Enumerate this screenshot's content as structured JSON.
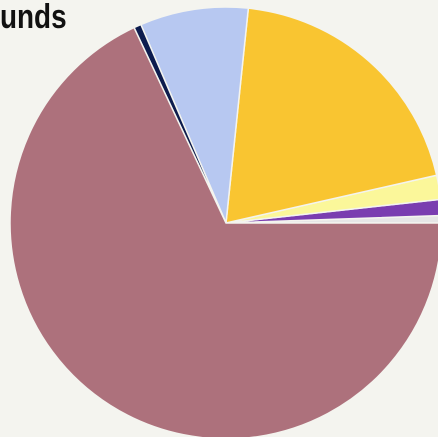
{
  "chart_data": {
    "type": "pie",
    "title": "unds",
    "start_angle_deg": 0,
    "direction": "counterclockwise",
    "slices": [
      {
        "value": 0.55,
        "color": "#e6e6e6"
      },
      {
        "value": 1.2,
        "color": "#7a3db0"
      },
      {
        "value": 1.8,
        "color": "#fbf79a"
      },
      {
        "value": 19.8,
        "color": "#f9c531"
      },
      {
        "value": 8.1,
        "color": "#b7c8f1"
      },
      {
        "value": 0.55,
        "color": "#0d1c4e"
      },
      {
        "value": 68.0,
        "color": "#ad717c"
      }
    ]
  }
}
